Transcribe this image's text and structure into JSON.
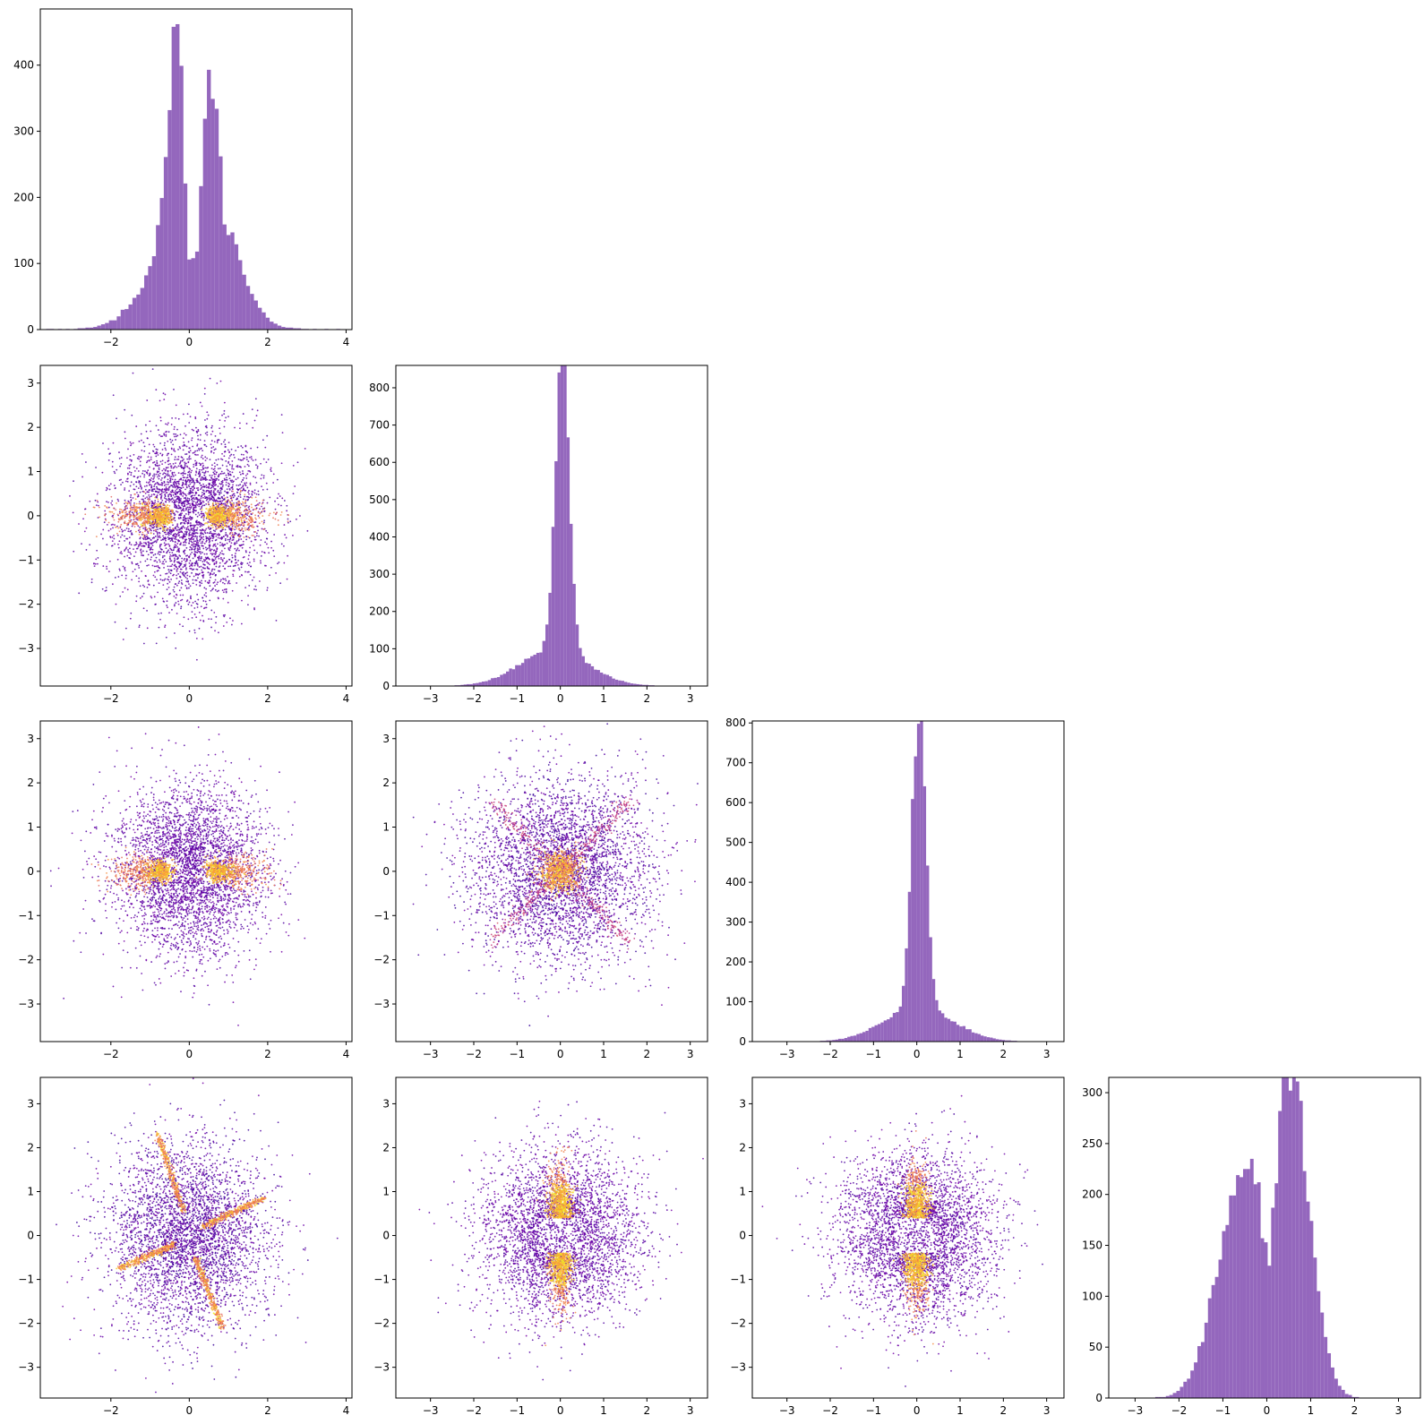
{
  "figure": {
    "hist_color": "#9467bd",
    "scatter_colormap": "plasma",
    "axis_color": "#000000"
  },
  "chart_data": [
    {
      "type": "bar",
      "row": 0,
      "col": 0,
      "kind": "histogram",
      "xlim": [
        -3.8,
        4.15
      ],
      "ylim": [
        0,
        485
      ],
      "xticks": [
        -2,
        0,
        2,
        4
      ],
      "yticks": [
        0,
        100,
        200,
        300,
        400
      ],
      "bin_width": 0.1,
      "histogram": [
        {
          "x": -3.6,
          "value": 1
        },
        {
          "x": -3.5,
          "value": 1
        },
        {
          "x": -3.3,
          "value": 1
        },
        {
          "x": -3.1,
          "value": 1
        },
        {
          "x": -2.9,
          "value": 1
        },
        {
          "x": -2.8,
          "value": 2
        },
        {
          "x": -2.7,
          "value": 2
        },
        {
          "x": -2.6,
          "value": 3
        },
        {
          "x": -2.5,
          "value": 3
        },
        {
          "x": -2.4,
          "value": 4
        },
        {
          "x": -2.3,
          "value": 6
        },
        {
          "x": -2.2,
          "value": 8
        },
        {
          "x": -2.1,
          "value": 10
        },
        {
          "x": -2.0,
          "value": 14
        },
        {
          "x": -1.9,
          "value": 14
        },
        {
          "x": -1.8,
          "value": 20
        },
        {
          "x": -1.7,
          "value": 30
        },
        {
          "x": -1.6,
          "value": 31
        },
        {
          "x": -1.5,
          "value": 38
        },
        {
          "x": -1.4,
          "value": 48
        },
        {
          "x": -1.3,
          "value": 53
        },
        {
          "x": -1.2,
          "value": 63
        },
        {
          "x": -1.1,
          "value": 82
        },
        {
          "x": -1.0,
          "value": 96
        },
        {
          "x": -0.9,
          "value": 111
        },
        {
          "x": -0.8,
          "value": 158
        },
        {
          "x": -0.7,
          "value": 199
        },
        {
          "x": -0.6,
          "value": 261
        },
        {
          "x": -0.5,
          "value": 332
        },
        {
          "x": -0.4,
          "value": 458
        },
        {
          "x": -0.3,
          "value": 462
        },
        {
          "x": -0.2,
          "value": 399
        },
        {
          "x": -0.1,
          "value": 221
        },
        {
          "x": 0.0,
          "value": 106
        },
        {
          "x": 0.1,
          "value": 108
        },
        {
          "x": 0.2,
          "value": 118
        },
        {
          "x": 0.3,
          "value": 217
        },
        {
          "x": 0.4,
          "value": 319
        },
        {
          "x": 0.5,
          "value": 393
        },
        {
          "x": 0.6,
          "value": 349
        },
        {
          "x": 0.7,
          "value": 334
        },
        {
          "x": 0.8,
          "value": 262
        },
        {
          "x": 0.9,
          "value": 159
        },
        {
          "x": 1.0,
          "value": 143
        },
        {
          "x": 1.1,
          "value": 147
        },
        {
          "x": 1.2,
          "value": 129
        },
        {
          "x": 1.3,
          "value": 105
        },
        {
          "x": 1.4,
          "value": 83
        },
        {
          "x": 1.5,
          "value": 66
        },
        {
          "x": 1.6,
          "value": 54
        },
        {
          "x": 1.7,
          "value": 44
        },
        {
          "x": 1.8,
          "value": 33
        },
        {
          "x": 1.9,
          "value": 26
        },
        {
          "x": 2.0,
          "value": 18
        },
        {
          "x": 2.1,
          "value": 12
        },
        {
          "x": 2.2,
          "value": 9
        },
        {
          "x": 2.3,
          "value": 6
        },
        {
          "x": 2.4,
          "value": 4
        },
        {
          "x": 2.5,
          "value": 3
        },
        {
          "x": 2.6,
          "value": 3
        },
        {
          "x": 2.7,
          "value": 2
        },
        {
          "x": 2.8,
          "value": 2
        },
        {
          "x": 2.9,
          "value": 1
        },
        {
          "x": 3.0,
          "value": 1
        },
        {
          "x": 3.2,
          "value": 1
        },
        {
          "x": 3.5,
          "value": 1
        },
        {
          "x": 3.8,
          "value": 1
        }
      ]
    },
    {
      "type": "bar",
      "row": 1,
      "col": 1,
      "kind": "histogram",
      "xlim": [
        -3.8,
        3.4
      ],
      "ylim": [
        0,
        860
      ],
      "xticks": [
        -3,
        -2,
        -1,
        0,
        1,
        2,
        3
      ],
      "yticks": [
        0,
        100,
        200,
        300,
        400,
        500,
        600,
        700,
        800
      ],
      "shape": {
        "peak": 815,
        "width": 0.16,
        "wide_amp": 95,
        "wide_sigma": 0.8,
        "skew": 0.15,
        "min_x": -3.6,
        "max_x": 3.2
      }
    },
    {
      "type": "bar",
      "row": 2,
      "col": 2,
      "kind": "histogram",
      "xlim": [
        -3.8,
        3.4
      ],
      "ylim": [
        0,
        805
      ],
      "xticks": [
        -3,
        -2,
        -1,
        0,
        1,
        2,
        3
      ],
      "yticks": [
        0,
        100,
        200,
        300,
        400,
        500,
        600,
        700,
        800
      ],
      "shape": {
        "peak": 765,
        "width": 0.16,
        "wide_amp": 85,
        "wide_sigma": 0.8,
        "skew": -0.05,
        "min_x": -3.6,
        "max_x": 3.0
      }
    },
    {
      "type": "bar",
      "row": 3,
      "col": 3,
      "kind": "histogram",
      "xlim": [
        -3.6,
        3.5
      ],
      "ylim": [
        0,
        315
      ],
      "xticks": [
        -3,
        -2,
        -1,
        0,
        1,
        2,
        3
      ],
      "yticks": [
        0,
        50,
        100,
        150,
        200,
        250,
        300
      ],
      "bimodal": {
        "peaks": [
          -0.6,
          0.55
        ],
        "amps": [
          200,
          300
        ],
        "sigma": 0.55,
        "dip": 0.45,
        "min_x": -3.3,
        "max_x": 3.2
      }
    },
    {
      "type": "scatter",
      "row": 1,
      "col": 0,
      "pattern": "bowtie_h",
      "xlim": [
        -3.8,
        4.15
      ],
      "ylim": [
        -3.85,
        3.4
      ],
      "xticks": [
        -2,
        0,
        2,
        4
      ],
      "yticks": [
        -3,
        -2,
        -1,
        0,
        1,
        2,
        3
      ]
    },
    {
      "type": "scatter",
      "row": 2,
      "col": 0,
      "pattern": "bowtie_h",
      "xlim": [
        -3.8,
        4.15
      ],
      "ylim": [
        -3.85,
        3.4
      ],
      "xticks": [
        -2,
        0,
        2,
        4
      ],
      "yticks": [
        -3,
        -2,
        -1,
        0,
        1,
        2,
        3
      ]
    },
    {
      "type": "scatter",
      "row": 2,
      "col": 1,
      "pattern": "x_cross",
      "xlim": [
        -3.8,
        3.4
      ],
      "ylim": [
        -3.85,
        3.4
      ],
      "xticks": [
        -3,
        -2,
        -1,
        0,
        1,
        2,
        3
      ],
      "yticks": [
        -3,
        -2,
        -1,
        0,
        1,
        2,
        3
      ]
    },
    {
      "type": "scatter",
      "row": 3,
      "col": 0,
      "pattern": "pinwheel",
      "xlim": [
        -3.8,
        4.15
      ],
      "ylim": [
        -3.7,
        3.6
      ],
      "xticks": [
        -2,
        0,
        2,
        4
      ],
      "yticks": [
        -3,
        -2,
        -1,
        0,
        1,
        2,
        3
      ]
    },
    {
      "type": "scatter",
      "row": 3,
      "col": 1,
      "pattern": "bowtie_v",
      "xlim": [
        -3.8,
        3.4
      ],
      "ylim": [
        -3.7,
        3.6
      ],
      "xticks": [
        -3,
        -2,
        -1,
        0,
        1,
        2,
        3
      ],
      "yticks": [
        -3,
        -2,
        -1,
        0,
        1,
        2,
        3
      ]
    },
    {
      "type": "scatter",
      "row": 3,
      "col": 2,
      "pattern": "bowtie_v",
      "xlim": [
        -3.8,
        3.4
      ],
      "ylim": [
        -3.7,
        3.6
      ],
      "xticks": [
        -3,
        -2,
        -1,
        0,
        1,
        2,
        3
      ],
      "yticks": [
        -3,
        -2,
        -1,
        0,
        1,
        2,
        3
      ]
    }
  ]
}
